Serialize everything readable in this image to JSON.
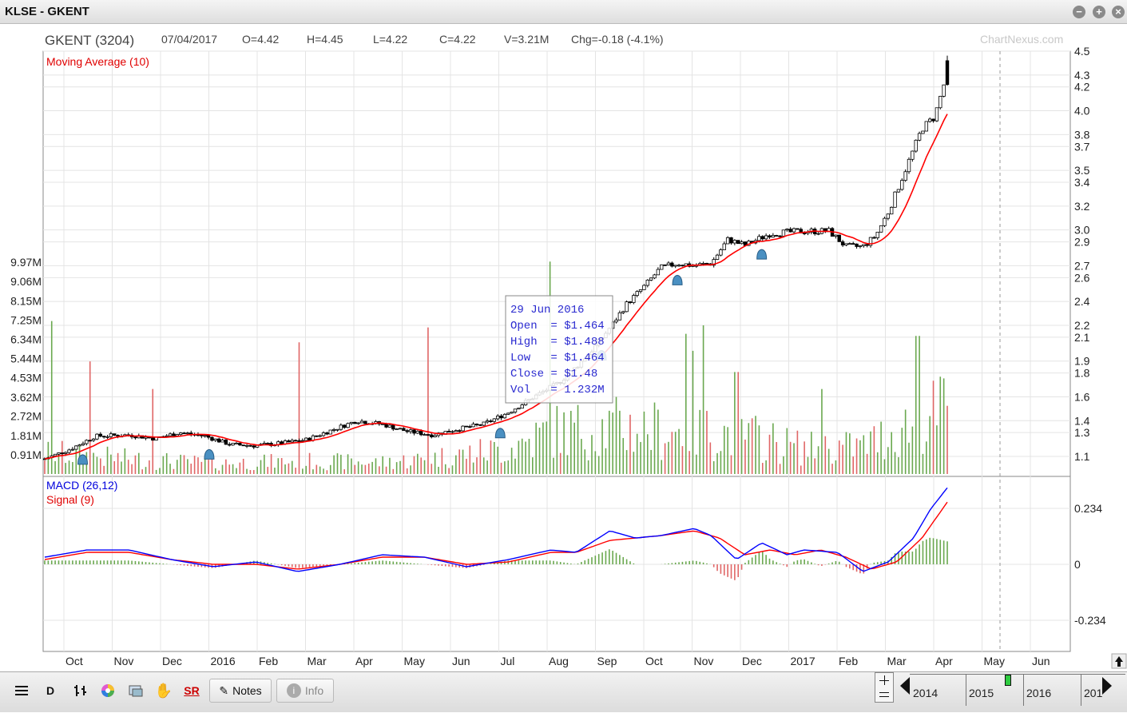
{
  "window": {
    "title": "KLSE - GKENT",
    "controls": [
      "minimize",
      "maximize",
      "close"
    ]
  },
  "header": {
    "symbol": "GKENT (3204)",
    "date": "07/04/2017",
    "open": "O=4.42",
    "high": "H=4.45",
    "low": "L=4.22",
    "close": "C=4.22",
    "volume": "V=3.21M",
    "change": "Chg=-0.18 (-4.1%)",
    "watermark": "ChartNexus.com"
  },
  "colors": {
    "up": "#ffffff",
    "down": "#000000",
    "ma": "#ff0000",
    "macd": "#0000ff",
    "signal": "#ff0000",
    "vol_up": "#6aa84f",
    "vol_down": "#e06666",
    "grid": "#e4e4e4",
    "marker": "#4a90c2"
  },
  "chart_data": [
    {
      "type": "candlestick",
      "title": "Moving Average (10)",
      "x_months": [
        "Oct",
        "Nov",
        "Dec",
        "2016",
        "Feb",
        "Mar",
        "Apr",
        "May",
        "Jun",
        "Jul",
        "Aug",
        "Sep",
        "Oct",
        "Nov",
        "Dec",
        "2017",
        "Feb",
        "Mar",
        "Apr",
        "May",
        "Jun"
      ],
      "price_ticks": [
        "4.5",
        "4.3",
        "4.2",
        "4.0",
        "3.8",
        "3.7",
        "3.5",
        "3.4",
        "3.2",
        "3.0",
        "2.9",
        "2.7",
        "2.6",
        "2.4",
        "2.2",
        "2.1",
        "1.9",
        "1.8",
        "1.6",
        "1.4",
        "1.3",
        "1.1"
      ],
      "price_tick_values": [
        4.5,
        4.3,
        4.2,
        4.0,
        3.8,
        3.7,
        3.5,
        3.4,
        3.2,
        3.0,
        2.9,
        2.7,
        2.6,
        2.4,
        2.2,
        2.1,
        1.9,
        1.8,
        1.6,
        1.4,
        1.3,
        1.1
      ],
      "volume_ticks": [
        "9.97M",
        "9.06M",
        "8.15M",
        "7.25M",
        "6.34M",
        "5.44M",
        "4.53M",
        "3.62M",
        "2.72M",
        "1.81M",
        "0.91M"
      ],
      "volume_tick_values": [
        9.97,
        9.06,
        8.15,
        7.25,
        6.34,
        5.44,
        4.53,
        3.62,
        2.72,
        1.81,
        0.91
      ],
      "price_anchors": [
        [
          0,
          1.08
        ],
        [
          0.03,
          1.16
        ],
        [
          0.06,
          1.27
        ],
        [
          0.1,
          1.28
        ],
        [
          0.13,
          1.25
        ],
        [
          0.16,
          1.3
        ],
        [
          0.19,
          1.27
        ],
        [
          0.22,
          1.2
        ],
        [
          0.25,
          1.19
        ],
        [
          0.28,
          1.21
        ],
        [
          0.31,
          1.24
        ],
        [
          0.34,
          1.32
        ],
        [
          0.37,
          1.4
        ],
        [
          0.4,
          1.37
        ],
        [
          0.43,
          1.31
        ],
        [
          0.46,
          1.28
        ],
        [
          0.49,
          1.33
        ],
        [
          0.52,
          1.37
        ],
        [
          0.55,
          1.47
        ],
        [
          0.58,
          1.6
        ],
        [
          0.61,
          1.72
        ],
        [
          0.63,
          1.85
        ],
        [
          0.65,
          2.0
        ],
        [
          0.67,
          2.18
        ],
        [
          0.69,
          2.38
        ],
        [
          0.71,
          2.52
        ],
        [
          0.73,
          2.68
        ],
        [
          0.75,
          2.72
        ],
        [
          0.77,
          2.7
        ],
        [
          0.79,
          2.72
        ],
        [
          0.81,
          2.92
        ],
        [
          0.83,
          2.87
        ],
        [
          0.86,
          2.97
        ],
        [
          0.9,
          2.99
        ],
        [
          0.93,
          2.99
        ],
        [
          0.95,
          2.86
        ],
        [
          0.97,
          2.86
        ],
        [
          0.985,
          2.95
        ],
        [
          1.0,
          3.15
        ],
        [
          1.02,
          3.5
        ],
        [
          1.04,
          3.85
        ],
        [
          1.055,
          3.95
        ],
        [
          1.07,
          4.32
        ]
      ],
      "volume_anchors": [
        [
          0,
          1.0
        ],
        [
          0.1,
          0.7
        ],
        [
          0.2,
          0.5
        ],
        [
          0.3,
          0.6
        ],
        [
          0.4,
          0.55
        ],
        [
          0.45,
          0.7
        ],
        [
          0.55,
          1.2
        ],
        [
          0.6,
          2.0
        ],
        [
          0.68,
          2.2
        ],
        [
          0.75,
          2.0
        ],
        [
          0.82,
          1.9
        ],
        [
          0.9,
          1.2
        ],
        [
          0.97,
          1.3
        ],
        [
          1.02,
          2.2
        ],
        [
          1.07,
          3.0
        ]
      ],
      "volume_spikes": [
        [
          0.01,
          7.2
        ],
        [
          0.055,
          5.3
        ],
        [
          0.13,
          4.0
        ],
        [
          0.3,
          6.2
        ],
        [
          0.455,
          6.9
        ],
        [
          0.6,
          10.0
        ],
        [
          0.77,
          5.8
        ],
        [
          0.76,
          6.6
        ],
        [
          0.78,
          7.0
        ],
        [
          0.82,
          4.8
        ],
        [
          0.92,
          4.0
        ],
        [
          1.032,
          8.4
        ],
        [
          1.035,
          6.5
        ],
        [
          1.065,
          4.5
        ]
      ],
      "alert_markers_fraction": [
        0.045,
        0.195,
        0.54,
        0.66,
        0.75,
        0.85
      ],
      "last_bar": {
        "open": 4.42,
        "high": 4.45,
        "low": 4.22,
        "close": 4.22,
        "volume_m": 3.21
      },
      "tooltip": {
        "date": "29 Jun 2016",
        "open": "Open  = $1.464",
        "high": "High  = $1.488",
        "low": "Low   = $1.464",
        "close": "Close = $1.48",
        "volume": "Vol   = 1.232M"
      },
      "grid": true
    },
    {
      "type": "line",
      "series": [
        {
          "name": "MACD (26,12)"
        },
        {
          "name": "Signal (9)"
        }
      ],
      "y_ticks": [
        "0.234",
        "0",
        "-0.234"
      ],
      "y_tick_values": [
        0.234,
        0,
        -0.234
      ],
      "macd_anchors": [
        [
          0,
          0.03
        ],
        [
          0.05,
          0.06
        ],
        [
          0.1,
          0.06
        ],
        [
          0.15,
          0.02
        ],
        [
          0.2,
          -0.01
        ],
        [
          0.25,
          0.01
        ],
        [
          0.3,
          -0.03
        ],
        [
          0.35,
          0.0
        ],
        [
          0.4,
          0.04
        ],
        [
          0.45,
          0.03
        ],
        [
          0.5,
          -0.01
        ],
        [
          0.55,
          0.02
        ],
        [
          0.6,
          0.06
        ],
        [
          0.63,
          0.05
        ],
        [
          0.67,
          0.14
        ],
        [
          0.7,
          0.11
        ],
        [
          0.73,
          0.12
        ],
        [
          0.77,
          0.15
        ],
        [
          0.79,
          0.12
        ],
        [
          0.82,
          0.02
        ],
        [
          0.85,
          0.09
        ],
        [
          0.88,
          0.04
        ],
        [
          0.9,
          0.06
        ],
        [
          0.94,
          0.05
        ],
        [
          0.97,
          -0.03
        ],
        [
          1.0,
          0.01
        ],
        [
          1.03,
          0.11
        ],
        [
          1.05,
          0.23
        ],
        [
          1.07,
          0.32
        ]
      ],
      "signal_anchors": [
        [
          0,
          0.02
        ],
        [
          0.05,
          0.05
        ],
        [
          0.1,
          0.05
        ],
        [
          0.15,
          0.02
        ],
        [
          0.2,
          0.0
        ],
        [
          0.25,
          0.0
        ],
        [
          0.3,
          -0.02
        ],
        [
          0.35,
          0.0
        ],
        [
          0.4,
          0.03
        ],
        [
          0.45,
          0.03
        ],
        [
          0.5,
          0.0
        ],
        [
          0.55,
          0.01
        ],
        [
          0.6,
          0.05
        ],
        [
          0.63,
          0.05
        ],
        [
          0.67,
          0.1
        ],
        [
          0.7,
          0.11
        ],
        [
          0.73,
          0.12
        ],
        [
          0.77,
          0.14
        ],
        [
          0.8,
          0.11
        ],
        [
          0.83,
          0.04
        ],
        [
          0.86,
          0.06
        ],
        [
          0.89,
          0.04
        ],
        [
          0.92,
          0.06
        ],
        [
          0.95,
          0.03
        ],
        [
          0.98,
          -0.02
        ],
        [
          1.01,
          0.01
        ],
        [
          1.04,
          0.11
        ],
        [
          1.07,
          0.26
        ]
      ],
      "grid": true
    }
  ],
  "toolbar": {
    "notes_label": "Notes",
    "info_label": "Info",
    "d_label": "D",
    "sr_label": "SR",
    "years": [
      "2014",
      "2015",
      "2016",
      "201"
    ]
  }
}
